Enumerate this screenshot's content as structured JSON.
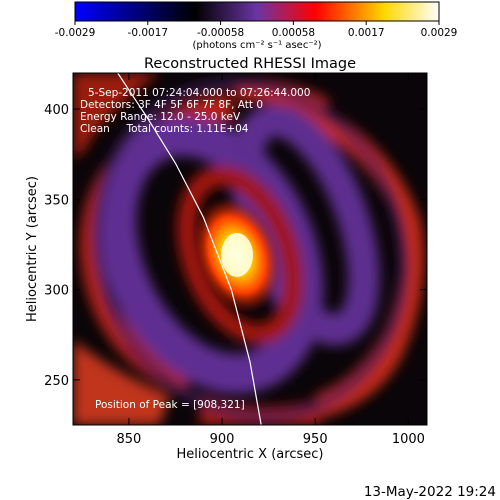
{
  "chart_data": {
    "type": "heatmap",
    "title": "Reconstructed RHESSI Image",
    "xlabel": "Heliocentric X (arcsec)",
    "ylabel": "Heliocentric Y (arcsec)",
    "xlim": [
      820,
      1010
    ],
    "ylim": [
      225,
      420
    ],
    "x_ticks": [
      850,
      900,
      950,
      1000
    ],
    "y_ticks": [
      250,
      300,
      350,
      400
    ],
    "colorbar": {
      "tick_labels": [
        "-0.0029",
        "-0.0017",
        "-0.00058",
        "0.00058",
        "0.0017",
        "0.0029"
      ],
      "label": "(photons cm⁻² s⁻¹ asec⁻²)",
      "range": [
        -0.0029,
        0.0029
      ],
      "colors": [
        "#0000ff",
        "#000000",
        "#6a35a3",
        "#ff0000",
        "#ffd800",
        "#ffffff"
      ]
    },
    "annotations": {
      "time": "5-Sep-2011 07:24:04.000 to 07:26:44.000",
      "detectors": "Detectors: 3F 4F 5F 6F 7F 8F, Att 0",
      "energy": "Energy Range: 12.0 - 25.0 keV",
      "clean": "Clean     Total counts: 1.11E+04",
      "peak": "Position of Peak = [908,321]"
    },
    "peak": {
      "x": 908,
      "y": 321
    },
    "limb_curve": [
      [
        844,
        420
      ],
      [
        860,
        395
      ],
      [
        875,
        370
      ],
      [
        890,
        340
      ],
      [
        905,
        300
      ],
      [
        915,
        260
      ],
      [
        921,
        225
      ]
    ],
    "features": [
      {
        "kind": "core",
        "x": 908,
        "y": 321,
        "value": 0.0029
      },
      {
        "kind": "ring",
        "x": 905,
        "y": 318,
        "value": -0.0007
      },
      {
        "kind": "ring",
        "x": 910,
        "y": 318,
        "value": 0.0013
      }
    ],
    "grid": false
  },
  "footer": {
    "timestamp": "13-May-2022 19:24"
  }
}
